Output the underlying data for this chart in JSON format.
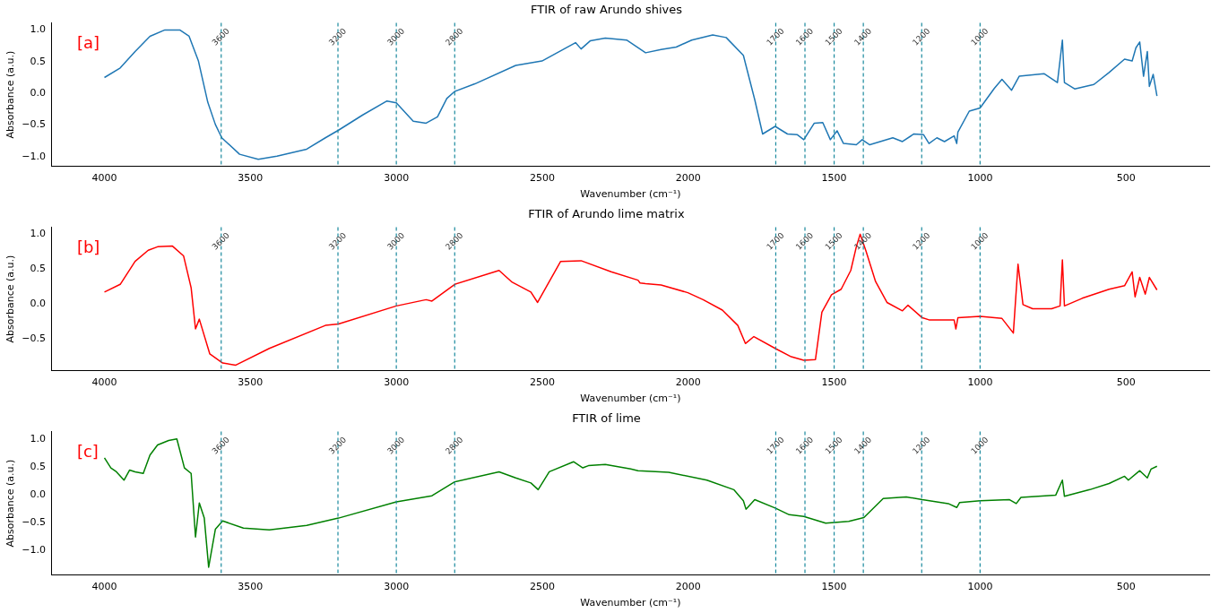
{
  "chart_data": [
    {
      "type": "line",
      "title": "FTIR of raw Arundo shives",
      "xlabel": "Wavenumber (cm⁻¹)",
      "ylabel": "Absorbance (a.u.)",
      "color": "#1f77b4",
      "grid": false,
      "legend": false,
      "marker": "none",
      "line_style": "solid",
      "annotations": [
        "[a]"
      ],
      "xlim": [
        4180,
        215
      ],
      "xticks": [
        4000,
        3500,
        3000,
        2500,
        2000,
        1500,
        1000,
        500
      ],
      "ylim": [
        -1.15,
        1.11
      ],
      "yticks": [
        {
          "value": -1,
          "label": "−1.0"
        },
        {
          "value": -0.5,
          "label": "−0.5"
        },
        {
          "value": 0,
          "label": "0.0"
        },
        {
          "value": 0.5,
          "label": "0.5"
        },
        {
          "value": 1,
          "label": "1.0"
        }
      ],
      "ref_lines": [
        {
          "axis": "x",
          "value": 3600,
          "label": "3600",
          "color": "#1b8a9e",
          "line_style": "dashed"
        },
        {
          "axis": "x",
          "value": 3200,
          "label": "3200",
          "color": "#1b8a9e",
          "line_style": "dashed"
        },
        {
          "axis": "x",
          "value": 3000,
          "label": "3000",
          "color": "#1b8a9e",
          "line_style": "dashed"
        },
        {
          "axis": "x",
          "value": 2800,
          "label": "2800",
          "color": "#1b8a9e",
          "line_style": "dashed"
        },
        {
          "axis": "x",
          "value": 1700,
          "label": "1700",
          "color": "#1b8a9e",
          "line_style": "dashed"
        },
        {
          "axis": "x",
          "value": 1600,
          "label": "1600",
          "color": "#1b8a9e",
          "line_style": "dashed"
        },
        {
          "axis": "x",
          "value": 1500,
          "label": "1500",
          "color": "#1b8a9e",
          "line_style": "dashed"
        },
        {
          "axis": "x",
          "value": 1400,
          "label": "1400",
          "color": "#1b8a9e",
          "line_style": "dashed"
        },
        {
          "axis": "x",
          "value": 1200,
          "label": "1200",
          "color": "#1b8a9e",
          "line_style": "dashed"
        },
        {
          "axis": "x",
          "value": 1000,
          "label": "1000",
          "color": "#1b8a9e",
          "line_style": "dashed"
        }
      ],
      "x": [
        4000,
        3946,
        3895,
        3844,
        3793,
        3742,
        3710,
        3678,
        3646,
        3620,
        3598,
        3537,
        3473,
        3409,
        3307,
        3243,
        3198,
        3115,
        3032,
        3000,
        2942,
        2898,
        2859,
        2827,
        2800,
        2731,
        2591,
        2501,
        2386,
        2367,
        2335,
        2284,
        2211,
        2146,
        2093,
        2041,
        1988,
        1916,
        1870,
        1811,
        1772,
        1745,
        1702,
        1660,
        1627,
        1604,
        1568,
        1539,
        1513,
        1490,
        1468,
        1424,
        1404,
        1378,
        1299,
        1266,
        1227,
        1194,
        1175,
        1148,
        1122,
        1089,
        1080,
        1076,
        1037,
        1000,
        951,
        925,
        892,
        866,
        781,
        735,
        718,
        711,
        676,
        610,
        558,
        505,
        479,
        466,
        453,
        440,
        427,
        420,
        407,
        394
      ],
      "values": [
        0.25,
        0.4,
        0.66,
        0.9,
        1.0,
        1.0,
        0.9,
        0.51,
        -0.14,
        -0.49,
        -0.7,
        -0.96,
        -1.04,
        -0.99,
        -0.88,
        -0.7,
        -0.58,
        -0.34,
        -0.12,
        -0.15,
        -0.44,
        -0.47,
        -0.37,
        -0.08,
        0.03,
        0.15,
        0.44,
        0.51,
        0.8,
        0.7,
        0.83,
        0.87,
        0.84,
        0.64,
        0.69,
        0.73,
        0.84,
        0.92,
        0.88,
        0.6,
        -0.1,
        -0.64,
        -0.52,
        -0.64,
        -0.65,
        -0.73,
        -0.47,
        -0.46,
        -0.73,
        -0.59,
        -0.79,
        -0.81,
        -0.73,
        -0.81,
        -0.7,
        -0.76,
        -0.64,
        -0.65,
        -0.79,
        -0.7,
        -0.76,
        -0.67,
        -0.79,
        -0.61,
        -0.28,
        -0.23,
        0.08,
        0.22,
        0.05,
        0.27,
        0.31,
        0.17,
        0.84,
        0.17,
        0.07,
        0.14,
        0.33,
        0.54,
        0.51,
        0.72,
        0.81,
        0.27,
        0.66,
        0.11,
        0.3,
        -0.04
      ]
    },
    {
      "type": "line",
      "title": "FTIR of Arundo lime matrix",
      "xlabel": "Wavenumber (cm⁻¹)",
      "ylabel": "Absorbance (a.u.)",
      "color": "#ff0000",
      "grid": false,
      "legend": false,
      "marker": "none",
      "line_style": "solid",
      "annotations": [
        "[b]"
      ],
      "xlim": [
        4180,
        215
      ],
      "xticks": [
        4000,
        3500,
        3000,
        2500,
        2000,
        1500,
        1000,
        500
      ],
      "ylim": [
        -0.96,
        1.1
      ],
      "yticks": [
        {
          "value": -0.5,
          "label": "−0.5"
        },
        {
          "value": 0,
          "label": "0.0"
        },
        {
          "value": 0.5,
          "label": "0.5"
        },
        {
          "value": 1,
          "label": "1.0"
        }
      ],
      "ref_lines": [
        {
          "axis": "x",
          "value": 3600,
          "label": "3600",
          "color": "#1b8a9e",
          "line_style": "dashed"
        },
        {
          "axis": "x",
          "value": 3200,
          "label": "3200",
          "color": "#1b8a9e",
          "line_style": "dashed"
        },
        {
          "axis": "x",
          "value": 3000,
          "label": "3000",
          "color": "#1b8a9e",
          "line_style": "dashed"
        },
        {
          "axis": "x",
          "value": 2800,
          "label": "2800",
          "color": "#1b8a9e",
          "line_style": "dashed"
        },
        {
          "axis": "x",
          "value": 1700,
          "label": "1700",
          "color": "#1b8a9e",
          "line_style": "dashed"
        },
        {
          "axis": "x",
          "value": 1600,
          "label": "1600",
          "color": "#1b8a9e",
          "line_style": "dashed"
        },
        {
          "axis": "x",
          "value": 1500,
          "label": "1500",
          "color": "#1b8a9e",
          "line_style": "dashed"
        },
        {
          "axis": "x",
          "value": 1400,
          "label": "1400",
          "color": "#1b8a9e",
          "line_style": "dashed"
        },
        {
          "axis": "x",
          "value": 1200,
          "label": "1200",
          "color": "#1b8a9e",
          "line_style": "dashed"
        },
        {
          "axis": "x",
          "value": 1000,
          "label": "1000",
          "color": "#1b8a9e",
          "line_style": "dashed"
        }
      ],
      "x": [
        4000,
        3946,
        3895,
        3850,
        3818,
        3767,
        3729,
        3703,
        3688,
        3675,
        3639,
        3595,
        3550,
        3435,
        3243,
        3198,
        3000,
        2898,
        2878,
        2800,
        2648,
        2603,
        2539,
        2516,
        2488,
        2437,
        2367,
        2264,
        2172,
        2165,
        2146,
        2093,
        2001,
        1949,
        1883,
        1830,
        1804,
        1775,
        1702,
        1647,
        1604,
        1564,
        1542,
        1509,
        1476,
        1443,
        1424,
        1411,
        1391,
        1358,
        1319,
        1266,
        1247,
        1198,
        1175,
        1089,
        1083,
        1076,
        1000,
        925,
        886,
        870,
        853,
        820,
        755,
        726,
        718,
        711,
        650,
        558,
        505,
        479,
        469,
        453,
        434,
        420,
        394
      ],
      "values": [
        0.17,
        0.28,
        0.61,
        0.77,
        0.82,
        0.83,
        0.69,
        0.23,
        -0.36,
        -0.22,
        -0.72,
        -0.85,
        -0.88,
        -0.64,
        -0.31,
        -0.29,
        -0.03,
        0.06,
        0.04,
        0.28,
        0.48,
        0.31,
        0.17,
        0.02,
        0.23,
        0.61,
        0.62,
        0.46,
        0.34,
        0.3,
        0.29,
        0.27,
        0.16,
        0.06,
        -0.09,
        -0.31,
        -0.57,
        -0.47,
        -0.64,
        -0.76,
        -0.81,
        -0.8,
        -0.12,
        0.13,
        0.21,
        0.48,
        0.82,
        1.0,
        0.76,
        0.32,
        0.02,
        -0.1,
        -0.02,
        -0.2,
        -0.23,
        -0.23,
        -0.36,
        -0.2,
        -0.18,
        -0.21,
        -0.42,
        0.57,
        -0.01,
        -0.07,
        -0.07,
        -0.03,
        0.63,
        -0.03,
        0.08,
        0.21,
        0.26,
        0.46,
        0.1,
        0.38,
        0.14,
        0.38,
        0.2
      ]
    },
    {
      "type": "line",
      "title": "FTIR of lime",
      "xlabel": "Wavenumber (cm⁻¹)",
      "ylabel": "Absorbance (a.u.)",
      "color": "#008000",
      "grid": false,
      "legend": false,
      "marker": "none",
      "line_style": "solid",
      "annotations": [
        "[c]"
      ],
      "xlim": [
        4180,
        215
      ],
      "xticks": [
        4000,
        3500,
        3000,
        2500,
        2000,
        1500,
        1000,
        500
      ],
      "ylim": [
        -1.44,
        1.13
      ],
      "yticks": [
        {
          "value": -1,
          "label": "−1.0"
        },
        {
          "value": -0.5,
          "label": "−0.5"
        },
        {
          "value": 0,
          "label": "0.0"
        },
        {
          "value": 0.5,
          "label": "0.5"
        },
        {
          "value": 1,
          "label": "1.0"
        }
      ],
      "ref_lines": [
        {
          "axis": "x",
          "value": 3600,
          "label": "3600",
          "color": "#1b8a9e",
          "line_style": "dashed"
        },
        {
          "axis": "x",
          "value": 3200,
          "label": "3200",
          "color": "#1b8a9e",
          "line_style": "dashed"
        },
        {
          "axis": "x",
          "value": 3000,
          "label": "3000",
          "color": "#1b8a9e",
          "line_style": "dashed"
        },
        {
          "axis": "x",
          "value": 2800,
          "label": "2800",
          "color": "#1b8a9e",
          "line_style": "dashed"
        },
        {
          "axis": "x",
          "value": 1700,
          "label": "1700",
          "color": "#1b8a9e",
          "line_style": "dashed"
        },
        {
          "axis": "x",
          "value": 1600,
          "label": "1600",
          "color": "#1b8a9e",
          "line_style": "dashed"
        },
        {
          "axis": "x",
          "value": 1500,
          "label": "1500",
          "color": "#1b8a9e",
          "line_style": "dashed"
        },
        {
          "axis": "x",
          "value": 1400,
          "label": "1400",
          "color": "#1b8a9e",
          "line_style": "dashed"
        },
        {
          "axis": "x",
          "value": 1200,
          "label": "1200",
          "color": "#1b8a9e",
          "line_style": "dashed"
        },
        {
          "axis": "x",
          "value": 1000,
          "label": "1000",
          "color": "#1b8a9e",
          "line_style": "dashed"
        }
      ],
      "x": [
        4000,
        3978,
        3959,
        3933,
        3914,
        3895,
        3867,
        3844,
        3818,
        3780,
        3752,
        3726,
        3703,
        3688,
        3675,
        3658,
        3643,
        3620,
        3595,
        3524,
        3435,
        3307,
        3198,
        3000,
        2878,
        2800,
        2648,
        2591,
        2539,
        2514,
        2476,
        2393,
        2361,
        2342,
        2284,
        2197,
        2172,
        2067,
        1936,
        1844,
        1811,
        1802,
        1772,
        1702,
        1654,
        1604,
        1529,
        1450,
        1398,
        1332,
        1253,
        1198,
        1109,
        1080,
        1070,
        1000,
        899,
        876,
        860,
        741,
        718,
        711,
        624,
        558,
        505,
        492,
        453,
        427,
        414,
        394
      ],
      "values": [
        0.66,
        0.48,
        0.41,
        0.26,
        0.44,
        0.41,
        0.38,
        0.71,
        0.89,
        0.97,
        1.0,
        0.48,
        0.38,
        -0.76,
        -0.15,
        -0.42,
        -1.3,
        -0.62,
        -0.47,
        -0.6,
        -0.63,
        -0.55,
        -0.42,
        -0.13,
        -0.02,
        0.23,
        0.41,
        0.3,
        0.21,
        0.09,
        0.41,
        0.59,
        0.48,
        0.52,
        0.54,
        0.46,
        0.43,
        0.4,
        0.26,
        0.09,
        -0.11,
        -0.26,
        -0.09,
        -0.24,
        -0.36,
        -0.39,
        -0.51,
        -0.48,
        -0.41,
        -0.07,
        -0.04,
        -0.09,
        -0.16,
        -0.23,
        -0.14,
        -0.11,
        -0.09,
        -0.16,
        -0.05,
        -0.01,
        0.26,
        -0.03,
        0.09,
        0.2,
        0.33,
        0.26,
        0.43,
        0.3,
        0.46,
        0.51
      ]
    }
  ]
}
